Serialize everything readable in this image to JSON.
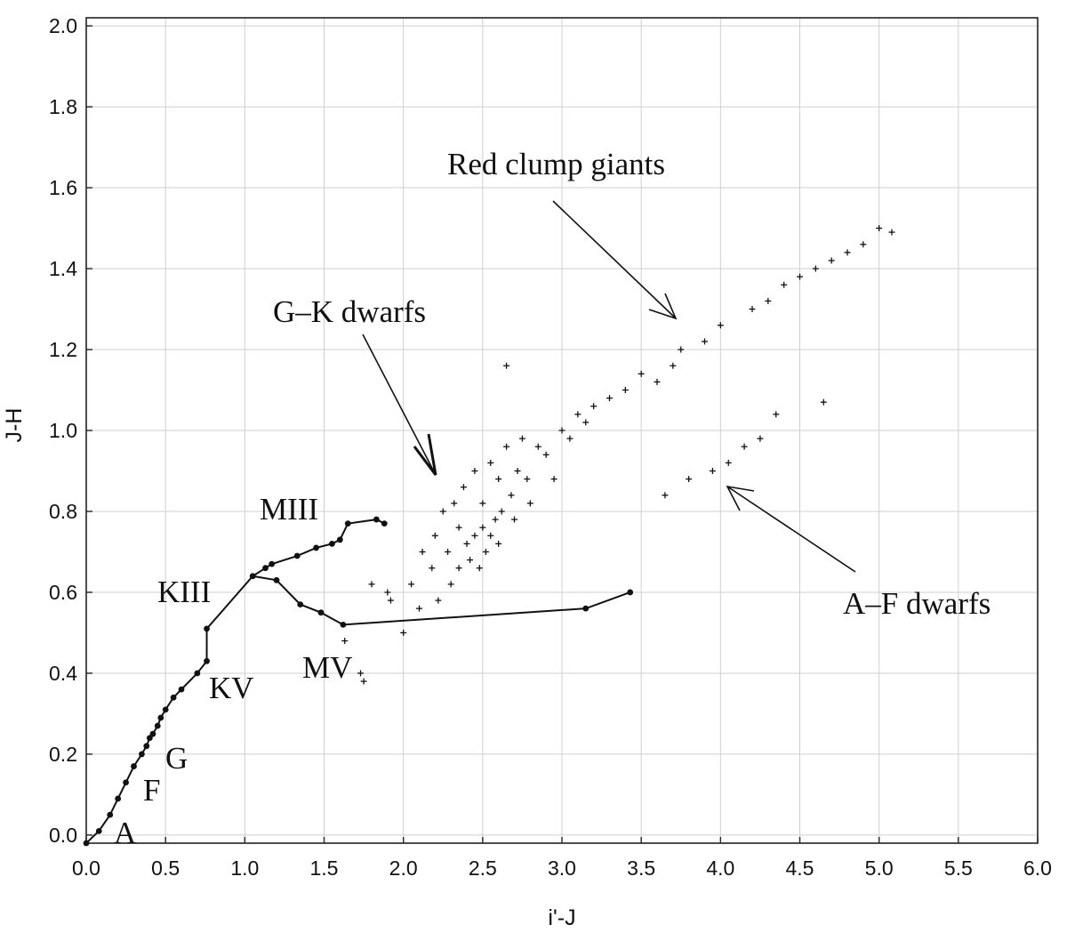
{
  "chart_data": {
    "type": "scatter",
    "xlabel": "i'-J",
    "ylabel": "J-H",
    "xlim": [
      0.0,
      6.0
    ],
    "ylim": [
      -0.02,
      2.02
    ],
    "xticks": [
      "0.0",
      "0.5",
      "1.0",
      "1.5",
      "2.0",
      "2.5",
      "3.0",
      "3.5",
      "4.0",
      "4.5",
      "5.0",
      "5.5",
      "6.0"
    ],
    "yticks": [
      "0.0",
      "0.2",
      "0.4",
      "0.6",
      "0.8",
      "1.0",
      "1.2",
      "1.4",
      "1.6",
      "1.8",
      "2.0"
    ],
    "grid": true,
    "dwarf_track": {
      "x": [
        0.0,
        0.08,
        0.15,
        0.2,
        0.25,
        0.3,
        0.35,
        0.38,
        0.4,
        0.42,
        0.45,
        0.47,
        0.5,
        0.55,
        0.6,
        0.7,
        0.76,
        0.76,
        1.05,
        1.2,
        1.35,
        1.48,
        1.62,
        3.15,
        3.43
      ],
      "y": [
        -0.02,
        0.01,
        0.05,
        0.09,
        0.13,
        0.17,
        0.2,
        0.22,
        0.24,
        0.25,
        0.27,
        0.29,
        0.31,
        0.34,
        0.36,
        0.4,
        0.43,
        0.51,
        0.64,
        0.63,
        0.57,
        0.55,
        0.52,
        0.56,
        0.6
      ]
    },
    "giant_track": {
      "x": [
        1.05,
        1.13,
        1.17,
        1.33,
        1.45,
        1.55,
        1.6,
        1.65,
        1.83,
        1.88
      ],
      "y": [
        0.64,
        0.66,
        0.67,
        0.69,
        0.71,
        0.72,
        0.73,
        0.77,
        0.78,
        0.77
      ]
    },
    "scatter_points": {
      "x": [
        1.63,
        1.73,
        1.75,
        1.8,
        1.9,
        1.92,
        2.0,
        2.05,
        2.1,
        2.12,
        2.18,
        2.2,
        2.22,
        2.25,
        2.28,
        2.3,
        2.32,
        2.35,
        2.35,
        2.38,
        2.4,
        2.42,
        2.45,
        2.45,
        2.48,
        2.5,
        2.5,
        2.52,
        2.55,
        2.55,
        2.58,
        2.6,
        2.6,
        2.62,
        2.65,
        2.68,
        2.7,
        2.72,
        2.75,
        2.78,
        2.8,
        2.85,
        2.9,
        2.95,
        3.0,
        3.05,
        3.1,
        3.15,
        3.2,
        3.3,
        3.4,
        3.5,
        3.6,
        3.7,
        3.75,
        3.9,
        4.0,
        4.2,
        4.3,
        4.4,
        4.5,
        4.6,
        4.7,
        4.8,
        4.9,
        5.0,
        5.08,
        3.65,
        3.8,
        3.95,
        4.05,
        4.15,
        4.25,
        2.65,
        4.35,
        4.65
      ],
      "y": [
        0.48,
        0.4,
        0.38,
        0.62,
        0.6,
        0.58,
        0.5,
        0.62,
        0.56,
        0.7,
        0.66,
        0.74,
        0.58,
        0.8,
        0.7,
        0.62,
        0.82,
        0.76,
        0.66,
        0.86,
        0.72,
        0.68,
        0.74,
        0.9,
        0.66,
        0.76,
        0.82,
        0.7,
        0.74,
        0.92,
        0.78,
        0.72,
        0.88,
        0.8,
        0.96,
        0.84,
        0.78,
        0.9,
        0.98,
        0.88,
        0.82,
        0.96,
        0.94,
        0.88,
        1.0,
        0.98,
        1.04,
        1.02,
        1.06,
        1.08,
        1.1,
        1.14,
        1.12,
        1.16,
        1.2,
        1.22,
        1.26,
        1.3,
        1.32,
        1.36,
        1.38,
        1.4,
        1.42,
        1.44,
        1.46,
        1.5,
        1.49,
        0.84,
        0.88,
        0.9,
        0.92,
        0.96,
        0.98,
        1.16,
        1.04,
        1.07
      ]
    },
    "annotations": [
      {
        "text": "Red clump giants"
      },
      {
        "text": "G–K dwarfs"
      },
      {
        "text": "A–F dwarfs"
      },
      {
        "text": "MIII"
      },
      {
        "text": "KIII"
      },
      {
        "text": "KV"
      },
      {
        "text": "MV"
      },
      {
        "text": "G"
      },
      {
        "text": "F"
      },
      {
        "text": "A"
      }
    ]
  }
}
